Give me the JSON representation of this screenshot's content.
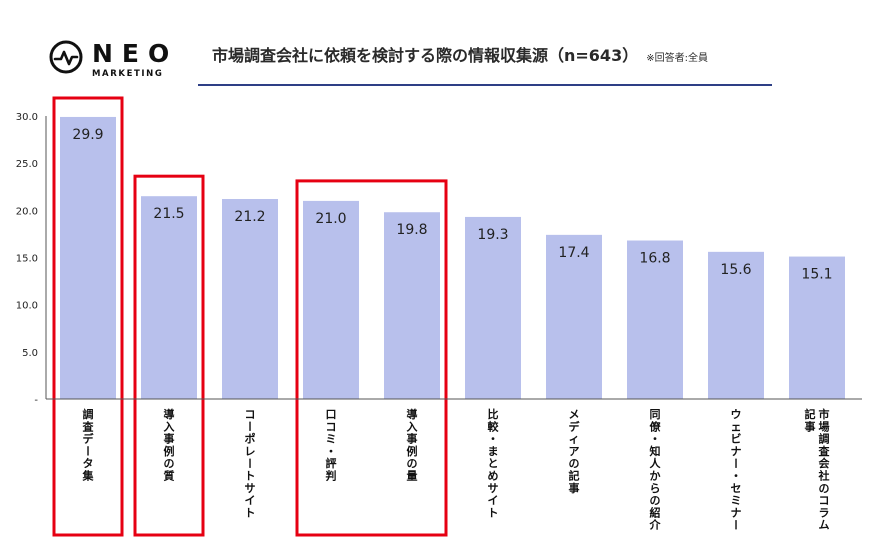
{
  "brand": {
    "word": "NEO",
    "sub": "MARKETING"
  },
  "header": {
    "title": "市場調査会社に依頼を検討する際の情報収集源（n=643）",
    "note": "※回答者:全員"
  },
  "colors": {
    "bar": "#b8c0ec",
    "highlight": "#e60012",
    "rule": "#2e3f86",
    "axis": "#555555"
  },
  "chart_data": {
    "type": "bar",
    "categories": [
      "調査データ集",
      "導入事例の質",
      "コーポレートサイト",
      "口コミ・評判",
      "導入事例の量",
      "比較・まとめサイト",
      "メディアの記事",
      "同僚・知人からの紹介",
      "ウェビナー・セミナー",
      "市場調査会社のコラム記事"
    ],
    "values": [
      29.9,
      21.5,
      21.2,
      21.0,
      19.8,
      19.3,
      17.4,
      16.8,
      15.6,
      15.1
    ],
    "value_labels": [
      "29.9",
      "21.5",
      "21.2",
      "21.0",
      "19.8",
      "19.3",
      "17.4",
      "16.8",
      "15.6",
      "15.1"
    ],
    "category_lines": [
      [
        "調査データ集"
      ],
      [
        "導入事例の質"
      ],
      [
        "コーポレートサイト"
      ],
      [
        "口コミ・評判"
      ],
      [
        "導入事例の量"
      ],
      [
        "比較・まとめサイト"
      ],
      [
        "メディアの記事"
      ],
      [
        "同僚・知人からの紹介"
      ],
      [
        "ウェビナー・セミナー"
      ],
      [
        "市場調査会社のコラム",
        "記事"
      ]
    ],
    "yticks": [
      "-",
      "5.0",
      "10.0",
      "15.0",
      "20.0",
      "25.0",
      "30.0"
    ],
    "ylim": [
      0,
      30
    ],
    "highlight_groups": [
      [
        0
      ],
      [
        1
      ],
      [
        3,
        4
      ]
    ],
    "grid": false,
    "legend": "none"
  }
}
